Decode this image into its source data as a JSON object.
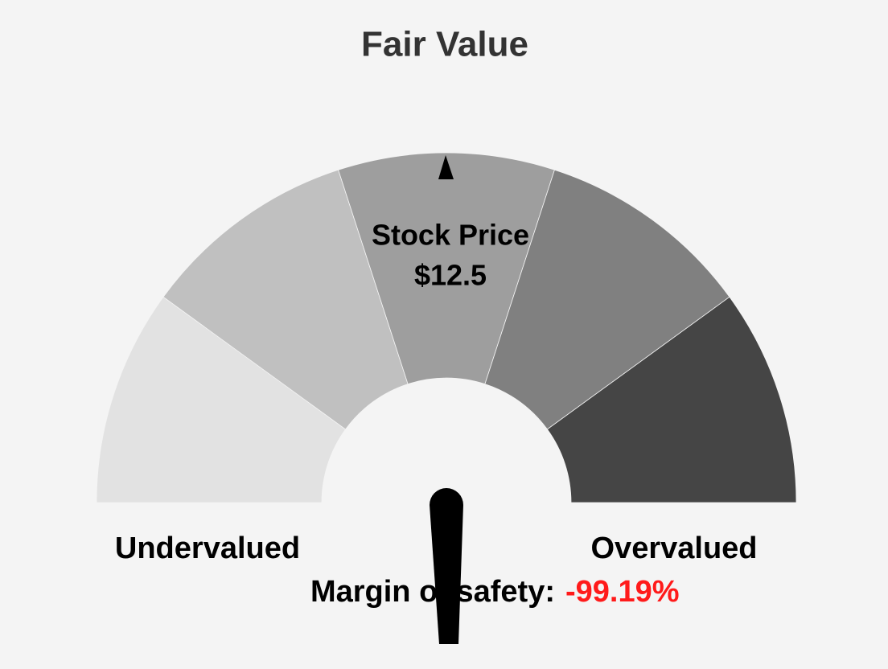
{
  "chart_data": {
    "type": "gauge",
    "title": "Fair Value",
    "segment_colors": [
      "#e2e2e2",
      "#c0c0c0",
      "#9e9e9e",
      "#808080",
      "#454545"
    ],
    "price_label": "Stock Price",
    "price": {
      "value": 12.5,
      "label": "$12.5"
    },
    "low_label": "Undervalued",
    "high_label": "Overvalued",
    "margin_label": "Margin of safety:",
    "margin_of_safety": {
      "value": -99.19,
      "label": "-99.19%"
    },
    "margin_color": "#ff1a1a"
  }
}
